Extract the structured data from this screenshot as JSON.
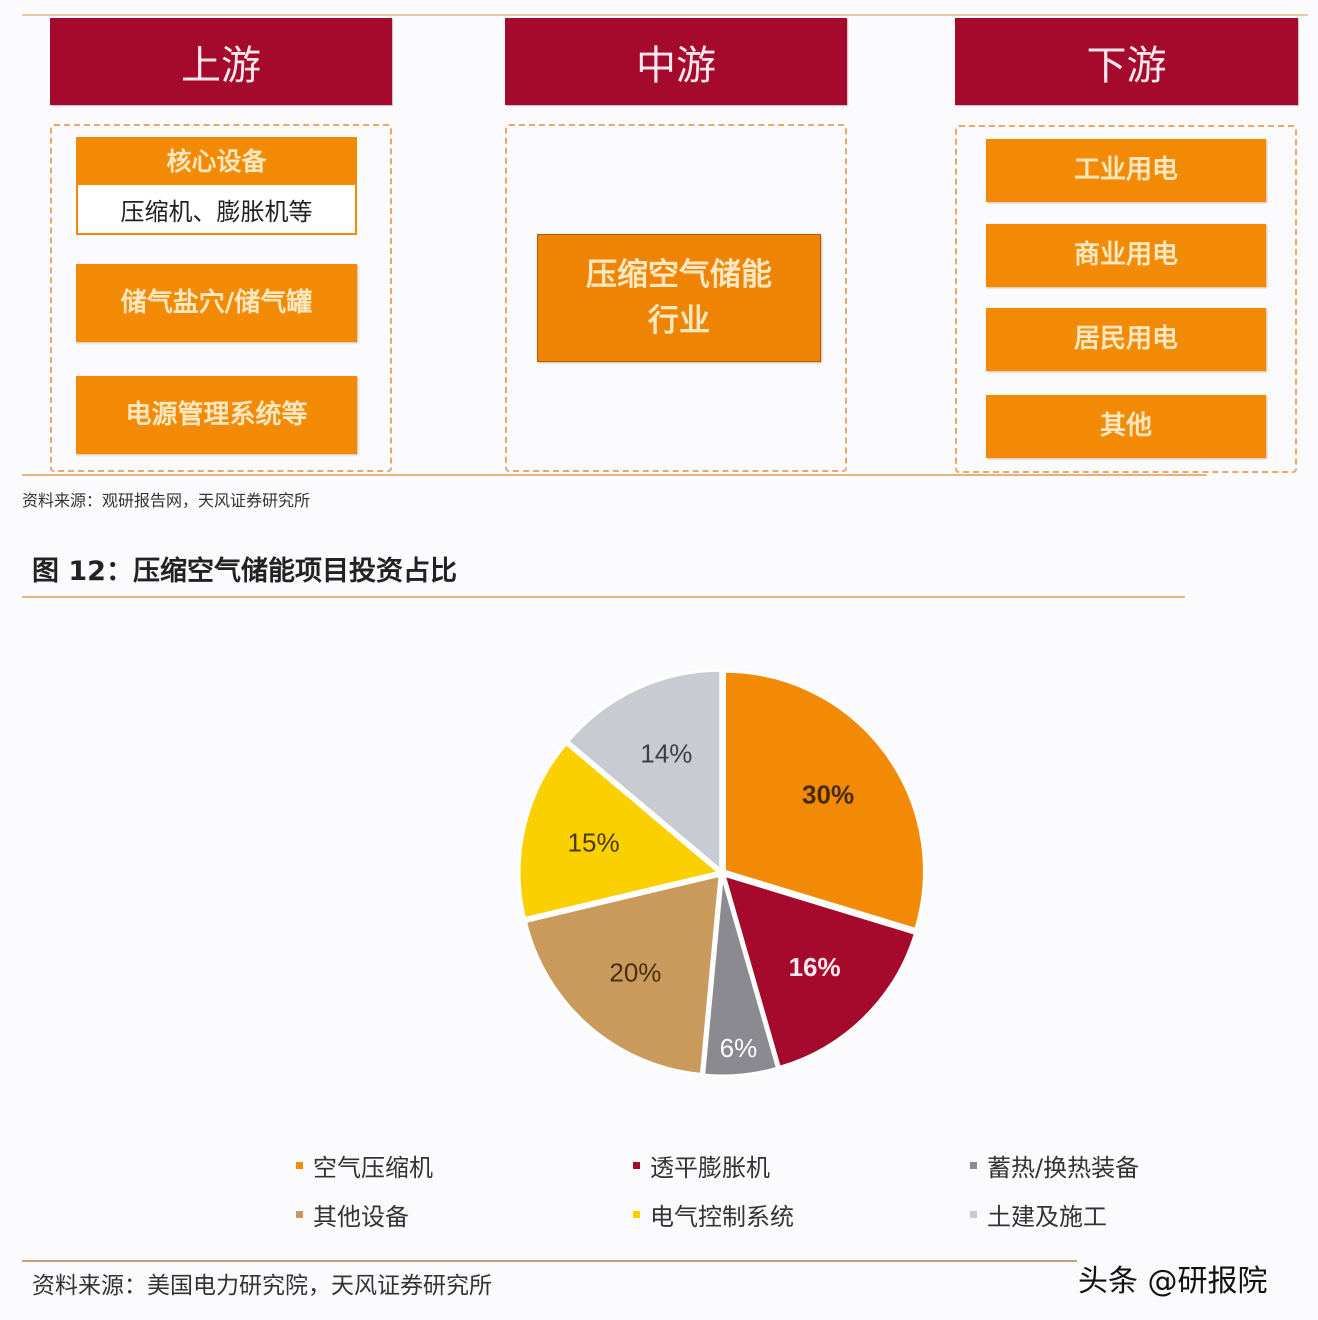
{
  "diagram": {
    "stages": [
      {
        "title": "上游",
        "items": [
          "储气盐穴/储气罐",
          "电源管理系统等"
        ],
        "core": {
          "title": "核心设备",
          "detail": "压缩机、膨胀机等"
        }
      },
      {
        "title": "中游",
        "items": [
          "压缩空气储能\n行业"
        ]
      },
      {
        "title": "下游",
        "items": [
          "工业用电",
          "商业用电",
          "居民用电",
          "其他"
        ]
      }
    ],
    "source": "资料来源：观研报告网，天风证券研究所"
  },
  "figure": {
    "title": "图 12：压缩空气储能项目投资占比",
    "source": "资料来源：美国电力研究院，天风证券研究所",
    "watermark": "头条 @研报院"
  },
  "legend": [
    {
      "label": "空气压缩机",
      "color": "#f28a05"
    },
    {
      "label": "透平膨胀机",
      "color": "#a5092c"
    },
    {
      "label": "蓄热/换热装备",
      "color": "#8a8a90"
    },
    {
      "label": "其他设备",
      "color": "#c99a5c"
    },
    {
      "label": "电气控制系统",
      "color": "#fbd000"
    },
    {
      "label": "土建及施工",
      "color": "#c8cbd2"
    }
  ],
  "chart_data": {
    "type": "pie",
    "title": "图 12：压缩空气储能项目投资占比",
    "categories": [
      "空气压缩机",
      "透平膨胀机",
      "蓄热/换热装备",
      "其他设备",
      "电气控制系统",
      "土建及施工"
    ],
    "values": [
      30,
      16,
      6,
      20,
      15,
      14
    ],
    "labels": [
      "30%",
      "16%",
      "6%",
      "20%",
      "15%",
      "14%"
    ],
    "colors": [
      "#f28a05",
      "#a5092c",
      "#8a8a90",
      "#c99a5c",
      "#fbd000",
      "#c8cbd2"
    ],
    "label_colors": [
      "#4a2a00",
      "#fde7ee",
      "#ffffff",
      "#4a3010",
      "#4a3a00",
      "#3a3f4a"
    ],
    "start_angle": "12 o'clock, clockwise",
    "legend_position": "bottom"
  }
}
